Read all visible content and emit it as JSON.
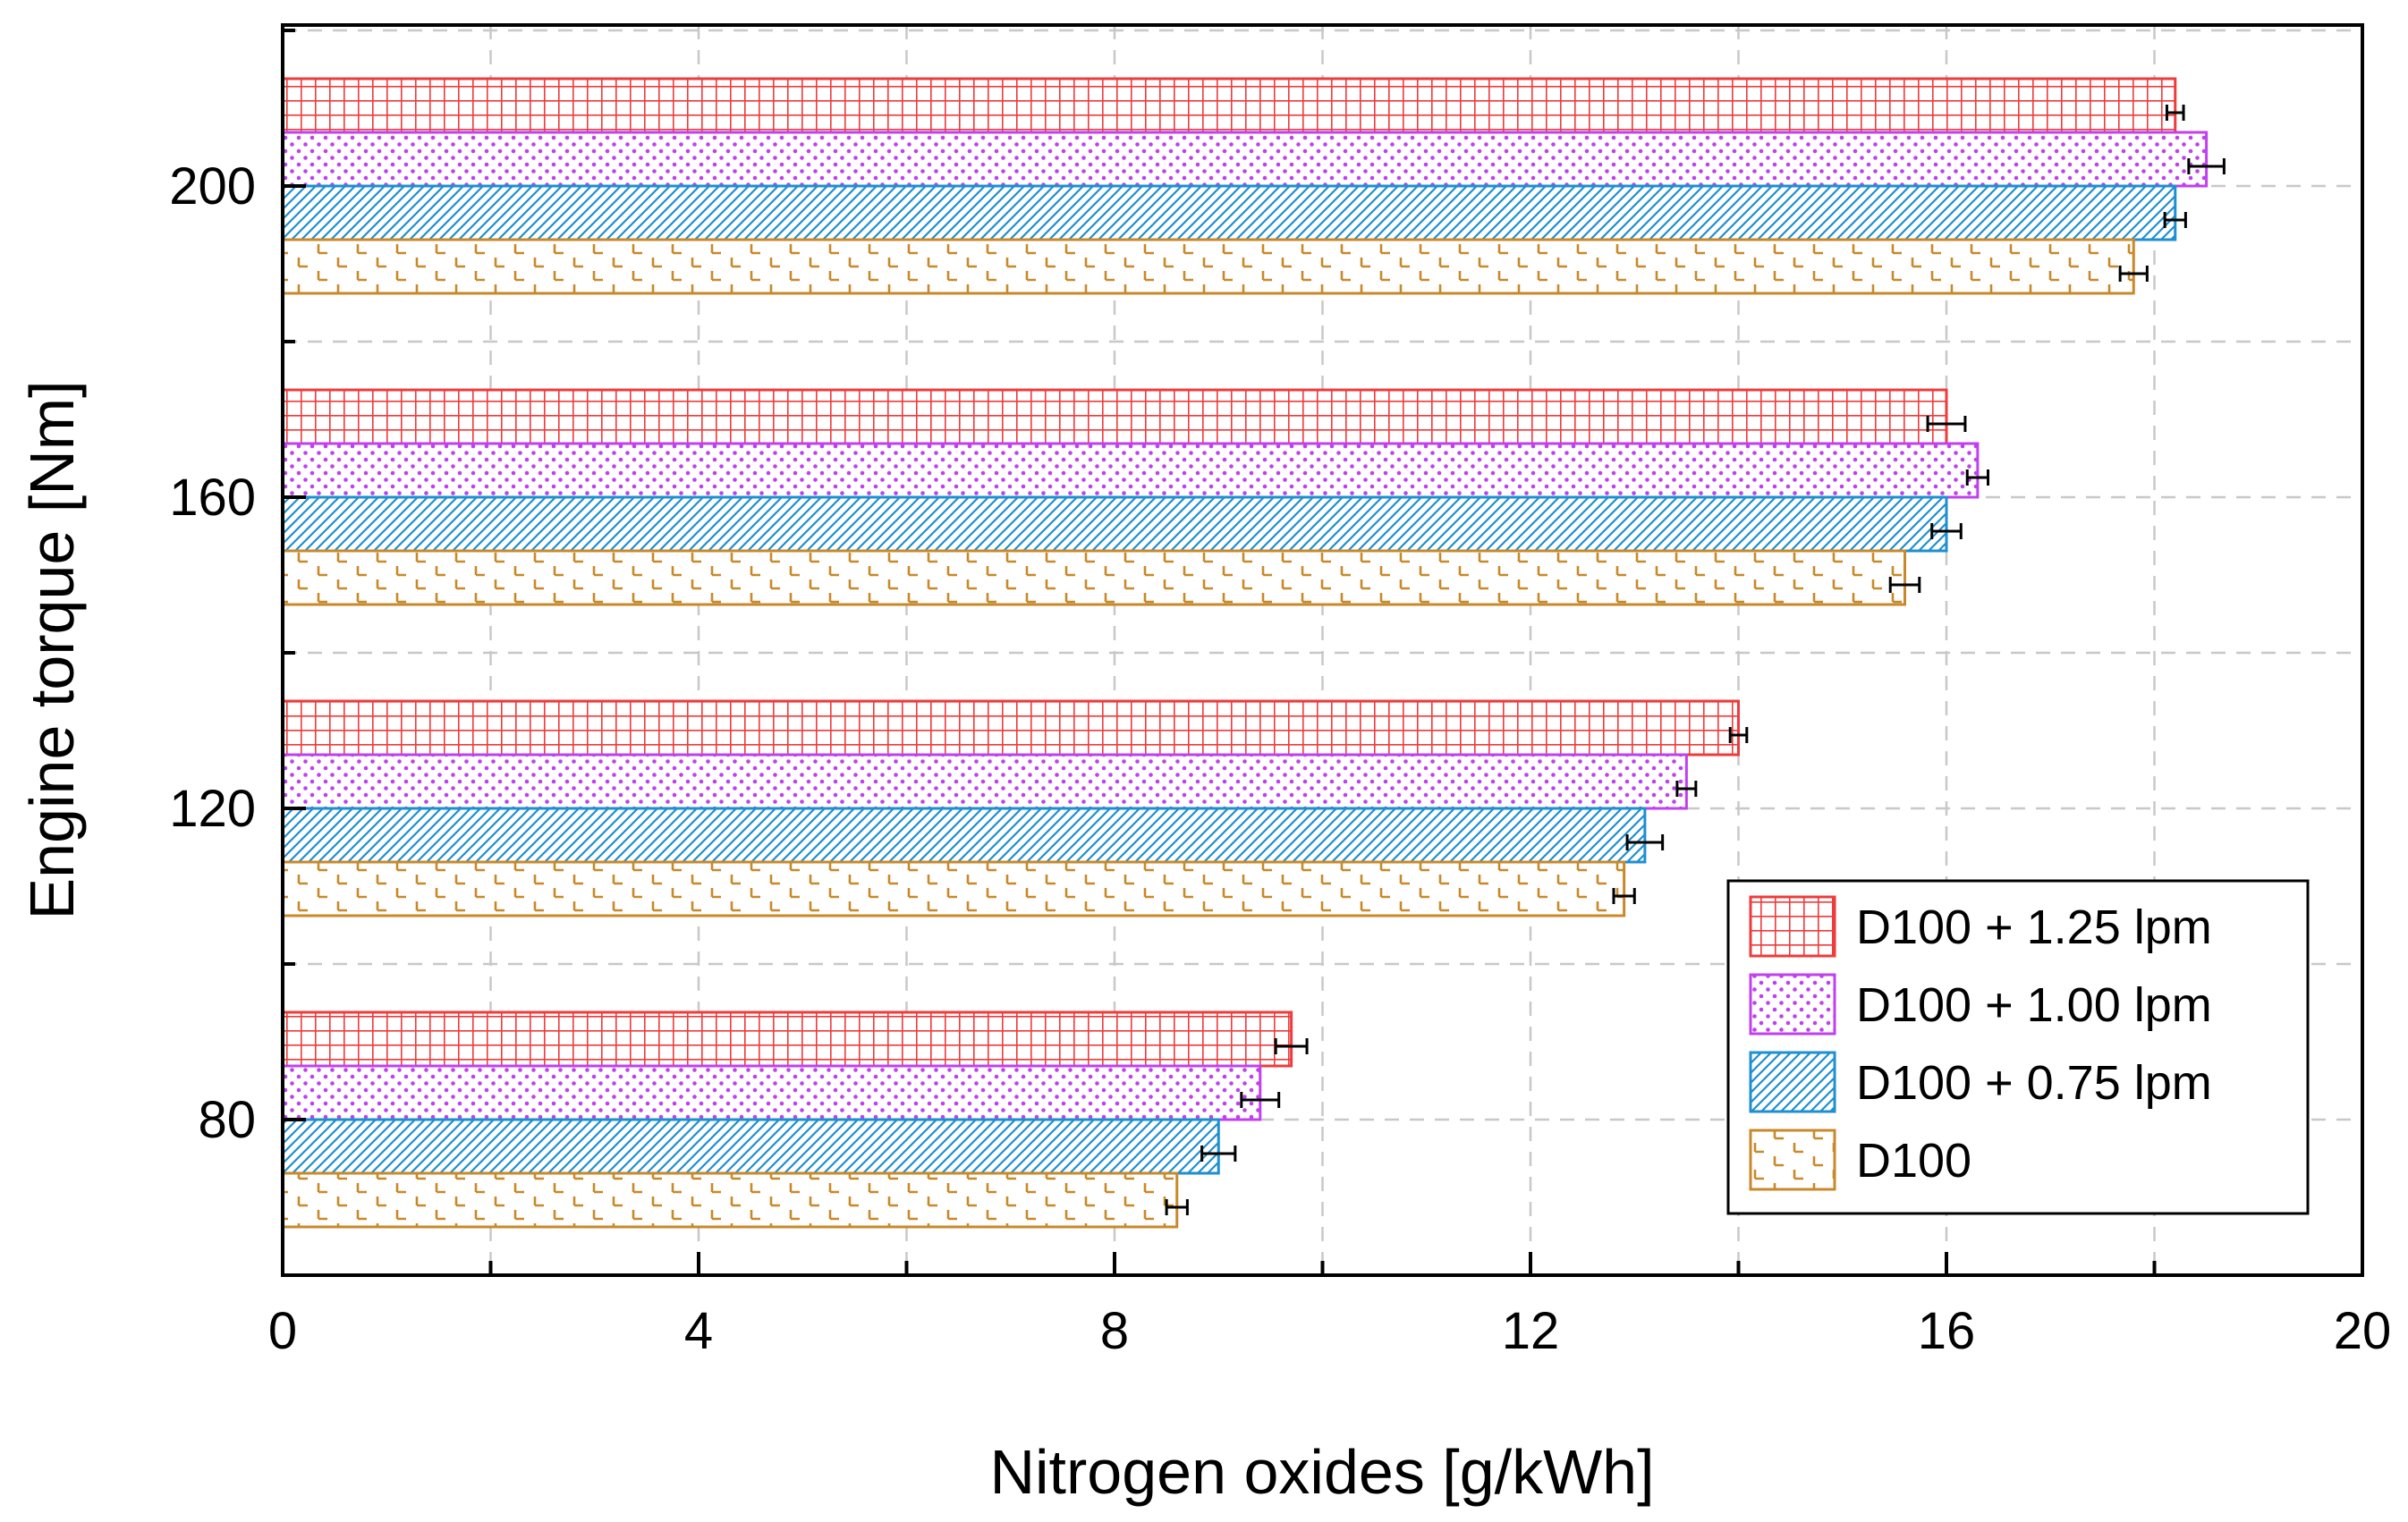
{
  "chart_data": {
    "type": "bar",
    "orientation": "horizontal",
    "title": "",
    "xlabel": "Nitrogen oxides [g/kWh]",
    "ylabel": "Engine torque [Nm]",
    "xlim": [
      0,
      20
    ],
    "xticks": [
      "0",
      "4",
      "8",
      "12",
      "16",
      "20"
    ],
    "xtick_values": [
      0,
      4,
      8,
      12,
      16,
      20
    ],
    "categories": [
      "80",
      "120",
      "160",
      "200"
    ],
    "grid": true,
    "legend_position": "bottom-right",
    "series": [
      {
        "name": "D100 + 1.25 lpm",
        "color": "#ee3b3b",
        "pattern": "grid",
        "values": [
          9.7,
          14.0,
          16.0,
          18.2
        ],
        "errors": [
          0.15,
          0.08,
          0.18,
          0.08
        ]
      },
      {
        "name": "D100 + 1.00 lpm",
        "color": "#c040f0",
        "pattern": "dots",
        "values": [
          9.4,
          13.5,
          16.3,
          18.5
        ],
        "errors": [
          0.18,
          0.09,
          0.1,
          0.17
        ]
      },
      {
        "name": "D100 + 0.75 lpm",
        "color": "#1e8fd0",
        "pattern": "diagonal",
        "values": [
          9.0,
          13.1,
          16.0,
          18.2
        ],
        "errors": [
          0.16,
          0.17,
          0.14,
          0.1
        ]
      },
      {
        "name": "D100",
        "color": "#c8892a",
        "pattern": "dash",
        "values": [
          8.6,
          12.9,
          15.6,
          17.8
        ],
        "errors": [
          0.1,
          0.1,
          0.14,
          0.13
        ]
      }
    ]
  }
}
